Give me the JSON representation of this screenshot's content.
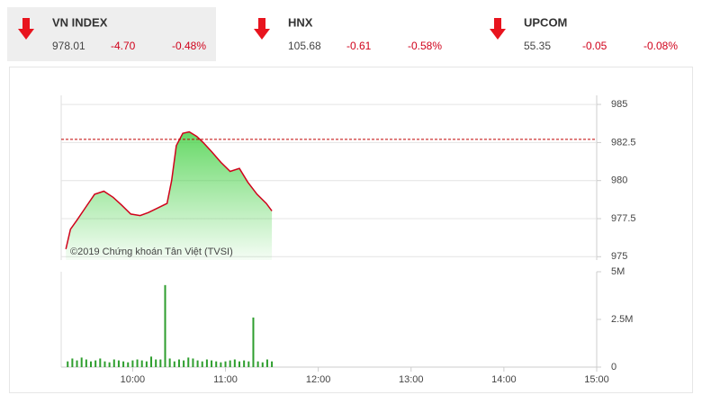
{
  "header": {
    "indices": [
      {
        "name": "VN INDEX",
        "value": "978.01",
        "change": "-4.70",
        "percent": "-0.48%"
      },
      {
        "name": "HNX",
        "value": "105.68",
        "change": "-0.61",
        "percent": "-0.58%"
      },
      {
        "name": "UPCOM",
        "value": "55.35",
        "change": "-0.05",
        "percent": "-0.08%"
      }
    ]
  },
  "chart_data": [
    {
      "type": "line",
      "annotation": "©2019 Chứng khoán Tân Việt (TVSI)",
      "x": [
        9.28,
        9.33,
        9.4,
        9.5,
        9.59,
        9.69,
        9.79,
        9.88,
        9.98,
        10.08,
        10.17,
        10.27,
        10.37,
        10.42,
        10.47,
        10.54,
        10.61,
        10.69,
        10.76,
        10.85,
        10.95,
        11.05,
        11.15,
        11.24,
        11.34,
        11.44,
        11.5
      ],
      "series": [
        {
          "color": "#d0021b",
          "values": [
            975.5,
            976.8,
            977.4,
            978.3,
            979.1,
            979.3,
            978.9,
            978.4,
            977.8,
            977.7,
            977.9,
            978.2,
            978.5,
            980.0,
            982.3,
            983.1,
            983.2,
            982.9,
            982.5,
            981.9,
            981.2,
            980.6,
            980.8,
            979.9,
            979.1,
            978.5,
            978.01
          ]
        }
      ],
      "reference": 982.71,
      "reference_color": "#c00000",
      "xlim": [
        9.23,
        15
      ],
      "ylim": [
        974.9,
        985.3
      ],
      "yticks": [
        985,
        982.5,
        980,
        977.5,
        975
      ],
      "grid": true
    },
    {
      "type": "bar",
      "color": "#2e9e2e",
      "x": [
        9.3,
        9.35,
        9.4,
        9.45,
        9.5,
        9.55,
        9.6,
        9.65,
        9.7,
        9.75,
        9.8,
        9.85,
        9.9,
        9.95,
        10.0,
        10.05,
        10.1,
        10.15,
        10.2,
        10.25,
        10.3,
        10.35,
        10.4,
        10.45,
        10.5,
        10.55,
        10.6,
        10.65,
        10.7,
        10.75,
        10.8,
        10.85,
        10.9,
        10.95,
        11.0,
        11.05,
        11.1,
        11.15,
        11.2,
        11.25,
        11.3,
        11.35,
        11.4,
        11.45,
        11.5
      ],
      "values": [
        300000,
        450000,
        350000,
        500000,
        400000,
        300000,
        350000,
        450000,
        300000,
        250000,
        400000,
        350000,
        300000,
        250000,
        350000,
        400000,
        350000,
        300000,
        550000,
        400000,
        400000,
        4300000,
        450000,
        300000,
        400000,
        350000,
        500000,
        450000,
        350000,
        300000,
        400000,
        350000,
        300000,
        250000,
        300000,
        350000,
        400000,
        300000,
        350000,
        300000,
        2600000,
        300000,
        250000,
        400000,
        300000
      ],
      "xlim": [
        9.23,
        15
      ],
      "xticks": [
        {
          "value": 10,
          "label": "10:00"
        },
        {
          "value": 11,
          "label": "11:00"
        },
        {
          "value": 12,
          "label": "12:00"
        },
        {
          "value": 13,
          "label": "13:00"
        },
        {
          "value": 14,
          "label": "14:00"
        },
        {
          "value": 15,
          "label": "15:00"
        }
      ],
      "ylim": [
        0,
        5000000
      ],
      "yticks": [
        0,
        {
          "value": 2500000,
          "label": "2.5M"
        },
        {
          "value": 5000000,
          "label": "5M"
        }
      ]
    }
  ]
}
